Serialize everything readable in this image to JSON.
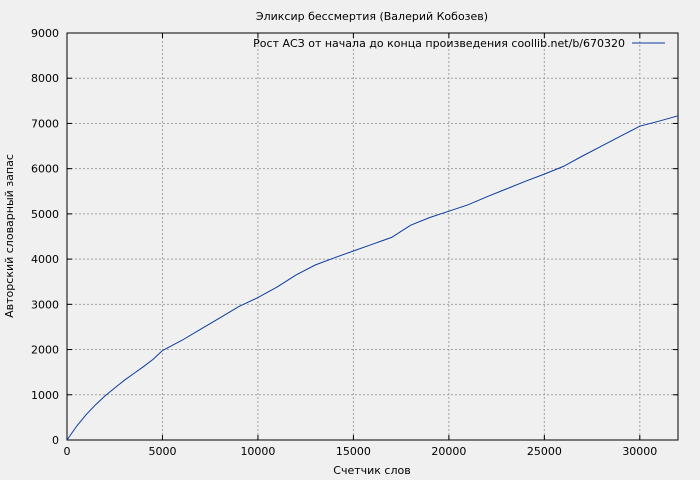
{
  "chart_data": {
    "type": "line",
    "title": "Эликсир бессмертия (Валерий Кобозев)",
    "xlabel": "Счетчик слов",
    "ylabel": "Авторский словарный запас",
    "xlim": [
      0,
      32000
    ],
    "ylim": [
      0,
      9000
    ],
    "xticks": [
      0,
      5000,
      10000,
      15000,
      20000,
      25000,
      30000
    ],
    "yticks": [
      0,
      1000,
      2000,
      3000,
      4000,
      5000,
      6000,
      7000,
      8000,
      9000
    ],
    "grid": true,
    "legend_position": "top-right",
    "colors": {
      "line": "#0b3c9e",
      "grid": "#a0a0a0",
      "background": "#f0f0f0"
    },
    "series": [
      {
        "name": "Рост АСЗ от начала до конца произведения coollib.net/b/670320",
        "x": [
          0,
          500,
          1000,
          1500,
          2000,
          2500,
          3000,
          3500,
          4000,
          4500,
          5000,
          6000,
          7000,
          8000,
          9000,
          10000,
          11000,
          12000,
          13000,
          14000,
          15000,
          16000,
          17000,
          18000,
          19000,
          20000,
          21000,
          22000,
          23000,
          24000,
          25000,
          26000,
          27000,
          28000,
          29000,
          30000,
          31000,
          32000
        ],
        "y": [
          0,
          300,
          560,
          780,
          980,
          1150,
          1320,
          1470,
          1620,
          1780,
          1980,
          2200,
          2450,
          2700,
          2950,
          3150,
          3380,
          3650,
          3870,
          4030,
          4180,
          4330,
          4480,
          4750,
          4920,
          5060,
          5200,
          5380,
          5550,
          5720,
          5880,
          6050,
          6280,
          6500,
          6720,
          6940,
          7050,
          7170
        ]
      }
    ]
  }
}
